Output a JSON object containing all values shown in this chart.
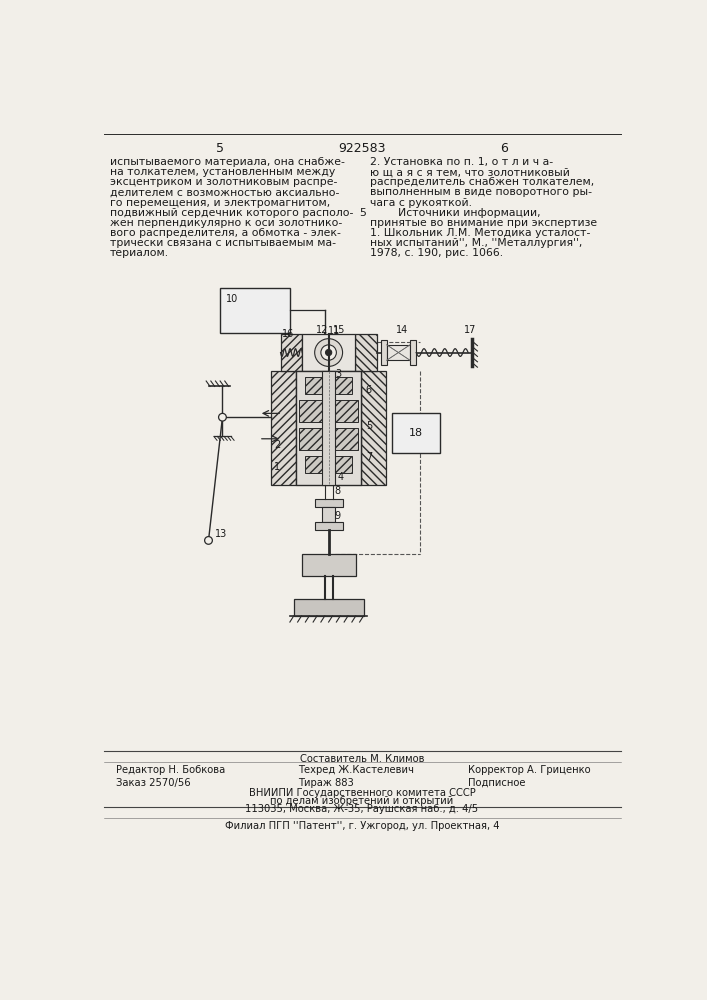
{
  "bg_color": "#f2efe9",
  "page_color": "#f2efe9",
  "title_page_num_left": "5",
  "patent_number": "922583",
  "title_page_num_right": "6",
  "text_left_col": [
    "испытываемого материала, она снабже-",
    "на толкателем, установленным между",
    "эксцентриком и золотниковым распре-",
    "делителем с возможностью аксиально-",
    "го перемещения, и электромагнитом,",
    "подвижный сердечник которого располо-",
    "жен перпендикулярно к оси золотнико-",
    "вого распределителя, а обмотка - элек-",
    "трически связана с испытываемым ма-",
    "териалом."
  ],
  "text_right_col": [
    "2. Установка по п. 1, о т л и ч а-",
    "ю щ а я с я тем, что золотниковый",
    "распределитель снабжен толкателем,",
    "выполненным в виде поворотного ры-",
    "чага с рукояткой.",
    "        Источники информации,",
    "принятые во внимание при экспертизе",
    "1. Школьник Л.М. Методика усталост-",
    "ных испытаний'', М., ''Металлургия'',",
    "1978, с. 190, рис. 1066."
  ],
  "line5_right_margin": " 5",
  "footer_compositor": "Составитель М. Климов",
  "footer_editor": "Редактор Н. Бобкова",
  "footer_techred": "Техред Ж.Кастелевич",
  "footer_corrector": "Корректор А. Гриценко",
  "footer_order": "Заказ 2570/56",
  "footer_circulation": "Тираж 883",
  "footer_subscribed": "Подписное",
  "footer_vniip1": "ВНИИПИ Государственного комитета СССР",
  "footer_vniip2": "по делам изобретений и открытий",
  "footer_vniip3": "113035, Москва, Ж-35, Раушская наб., д. 4/5",
  "footer_filial": "Филиал ПГП ''Патент'', г. Ужгород, ул. Проектная, 4",
  "text_color": "#1a1a1a",
  "line_color": "#2a2a2a",
  "hatch_color": "#555555",
  "light_gray": "#d0d0d0",
  "mid_gray": "#b0b0b0",
  "dark_gray": "#888888"
}
